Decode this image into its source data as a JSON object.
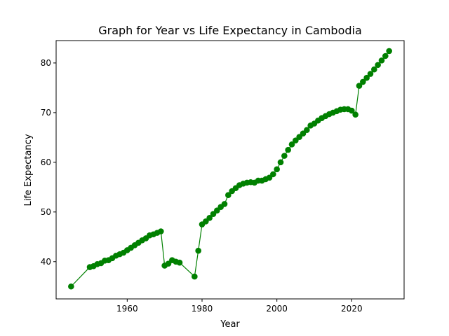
{
  "chart_data": {
    "type": "line",
    "title": "Graph for Year vs Life Expectancy in Cambodia",
    "xlabel": "Year",
    "ylabel": "Life Expectancy",
    "xlim": [
      1941,
      2034
    ],
    "ylim": [
      32.5,
      84.5
    ],
    "xticks": [
      1960,
      1980,
      2000,
      2020
    ],
    "yticks": [
      40,
      50,
      60,
      70,
      80
    ],
    "grid": false,
    "legend": "none",
    "color": "#008000",
    "series": [
      {
        "x": [
          1945,
          1950,
          1951,
          1952,
          1953,
          1954,
          1955,
          1956,
          1957,
          1958,
          1959,
          1960,
          1961,
          1962,
          1963,
          1964,
          1965,
          1966,
          1967,
          1968,
          1969,
          1970,
          1971,
          1972,
          1973,
          1974,
          1978,
          1979,
          1980,
          1981,
          1982,
          1983,
          1984,
          1985,
          1986,
          1987,
          1988,
          1989,
          1990,
          1991,
          1992,
          1993,
          1994,
          1995,
          1996,
          1997,
          1998,
          1999,
          2000,
          2001,
          2002,
          2003,
          2004,
          2005,
          2006,
          2007,
          2008,
          2009,
          2010,
          2011,
          2012,
          2013,
          2014,
          2015,
          2016,
          2017,
          2018,
          2019,
          2020,
          2021,
          2022,
          2023,
          2024,
          2025,
          2026,
          2027,
          2028,
          2029,
          2030
        ],
        "y": [
          35.0,
          38.9,
          39.1,
          39.5,
          39.7,
          40.2,
          40.3,
          40.7,
          41.2,
          41.5,
          41.8,
          42.3,
          42.8,
          43.3,
          43.8,
          44.3,
          44.7,
          45.3,
          45.5,
          45.8,
          46.1,
          39.2,
          39.6,
          40.3,
          40.0,
          39.8,
          37.0,
          42.2,
          47.5,
          48.1,
          48.8,
          49.6,
          50.3,
          51.0,
          51.6,
          53.4,
          54.2,
          54.8,
          55.4,
          55.7,
          55.9,
          56.0,
          55.9,
          56.3,
          56.3,
          56.6,
          56.9,
          57.6,
          58.6,
          60.0,
          61.3,
          62.5,
          63.6,
          64.4,
          65.1,
          65.8,
          66.5,
          67.4,
          67.8,
          68.4,
          68.9,
          69.3,
          69.7,
          70.0,
          70.3,
          70.6,
          70.7,
          70.7,
          70.4,
          69.6,
          75.4,
          76.2,
          77.0,
          77.8,
          78.7,
          79.6,
          80.5,
          81.4,
          82.4
        ]
      }
    ]
  }
}
